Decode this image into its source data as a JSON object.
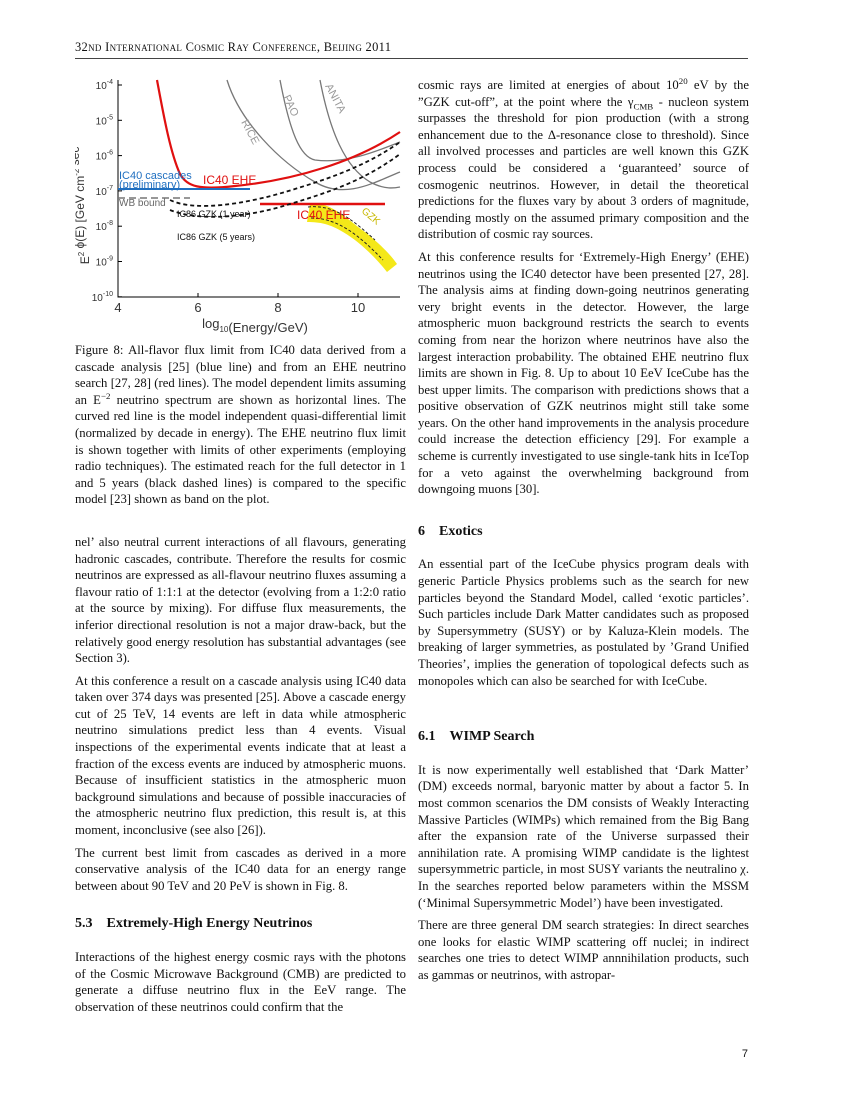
{
  "header": {
    "title": "32nd International Cosmic Ray Conference, Beijing 2011",
    "page": "7"
  },
  "figure": {
    "yticks": [
      {
        "base": "10",
        "sup": "-4"
      },
      {
        "base": "10",
        "sup": "-5"
      },
      {
        "base": "10",
        "sup": "-6"
      },
      {
        "base": "10",
        "sup": "-7"
      },
      {
        "base": "10",
        "sup": "-8"
      },
      {
        "base": "10",
        "sup": "-9"
      },
      {
        "base": "10",
        "sup": "-10"
      }
    ],
    "xticks": [
      4,
      6,
      8,
      10
    ],
    "ylabel": [
      {
        "base": "E",
        "sup": "2"
      },
      {
        "base": " ϕ(E) [GeV cm",
        "sup": "-2"
      },
      {
        "base": " sec",
        "sup": "-1"
      },
      {
        "base": " sr",
        "sup": "-1"
      },
      "]"
    ],
    "xlabel": [
      {
        "base": "log",
        "sub": "10"
      },
      "(Energy/GeV)"
    ],
    "annotations": {
      "rice": "RICE",
      "pao": "PAO",
      "anita": "ANITA",
      "gzk": "GZK",
      "ic40_cascades": "IC40 cascades",
      "preliminary": "(preliminary)",
      "ic40_ehe_curve": "IC40 EHE",
      "ic40_ehe_line": "IC40 EHE",
      "wb_bound": "WB bound",
      "ic86_1": "IC86 GZK (1 year)",
      "ic86_5": "IC86 GZK (5 years)"
    },
    "caption": [
      "Figure 8: All-flavor flux limit from IC40 data derived from a cascade analysis [25] (blue line) and from an EHE neutrino search [27, 28] (red lines). The model dependent limits assuming an ",
      {
        "base": "E",
        "sup": "−2"
      },
      " neutrino spectrum are shown as horizontal lines. The curved red line is the model independent quasi-differential limit (normalized by decade in energy). The EHE neutrino flux limit is shown together with limits of other experiments (employing radio techniques). The estimated reach for the full detector in 1 and 5 years (black dashed lines) is compared to the specific model [23] shown as band on the plot."
    ]
  },
  "left": {
    "p1": [
      "nel’ also neutral current interactions of all flavours, generating hadronic cascades, contribute. Therefore the results for cosmic neutrinos are expressed as all-flavour neutrino fluxes assuming a flavour ratio of 1:1:1 at the detector (evolving from a 1:2:0 ratio at the source by mixing). For diffuse flux measurements, the inferior directional resolution is not a major draw-back, but the relatively good energy resolution has substantial advantages (see Section 3)."
    ],
    "p2": [
      "At this conference a result on a cascade analysis using IC40 data taken over 374 days was presented [25]. Above a cascade energy cut of 25 TeV, 14 events are left in data while atmospheric neutrino simulations predict less than 4 events. Visual inspections of the experimental events indicate that at least a fraction of the excess events are induced by atmospheric muons. Because of insufficient statistics in the atmospheric muon background simulations and because of possible inaccuracies of the atmospheric neutrino flux prediction, this result is, at this moment, inconclusive (see also [26])."
    ],
    "p3": [
      "The current best limit from cascades as derived in a more conservative analysis of the IC40 data for an energy range between about 90 TeV and 20 PeV is shown in Fig. 8."
    ],
    "h53": {
      "num": "5.3",
      "title": "Extremely-High Energy Neutrinos"
    },
    "p4": [
      "Interactions of the highest energy cosmic rays with the photons of the Cosmic Microwave Background (CMB) are predicted to generate a diffuse neutrino flux in the EeV range. The observation of these neutrinos could confirm that the"
    ]
  },
  "right": {
    "p1": [
      "cosmic rays are limited at energies of about ",
      {
        "base": "10",
        "sup": "20"
      },
      " eV by the ”GZK cut-off”, at the point where the ",
      {
        "base": "γ",
        "sub": "CMB"
      },
      " - nucleon system surpasses the threshold for pion production (with a strong enhancement due to the Δ-resonance close to threshold). Since all involved processes and particles are well known this GZK process could be considered a ‘guaranteed’ source of cosmogenic neutrinos. However, in detail the theoretical predictions for the fluxes vary by about 3 orders of magnitude, depending mostly on the assumed primary composition and the distribution of cosmic ray sources."
    ],
    "p2": [
      "At this conference results for ‘Extremely-High Energy’ (EHE) neutrinos using the IC40 detector have been presented [27, 28]. The analysis aims at finding down-going neutrinos generating very bright events in the detector. However, the large atmospheric muon background restricts the search to events coming from near the horizon where neutrinos have also the largest interaction probability. The obtained EHE neutrino flux limits are shown in Fig. 8. Up to about 10 EeV IceCube has the best upper limits. The comparison with predictions shows that a positive observation of GZK neutrinos might still take some years. On the other hand improvements in the analysis procedure could increase the detection efficiency [29]. For example a scheme is currently investigated to use single-tank hits in IceTop for a veto against the overwhelming background from downgoing muons [30]."
    ],
    "h6": {
      "num": "6",
      "title": "Exotics"
    },
    "p3": [
      "An essential part of the IceCube physics program deals with generic Particle Physics problems such as the search for new particles beyond the Standard Model, called ‘exotic particles’. Such particles include Dark Matter candidates such as proposed by Supersymmetry (SUSY) or by Kaluza-Klein models. The breaking of larger symmetries, as postulated by ’Grand Unified Theories’, implies the generation of topological defects such as monopoles which can also be searched for with IceCube."
    ],
    "h61": {
      "num": "6.1",
      "title": "WIMP Search"
    },
    "p4": [
      "It is now experimentally well established that ‘Dark Matter’ (DM) exceeds normal, baryonic matter by about a factor 5. In most common scenarios the DM consists of Weakly Interacting Massive Particles (WIMPs) which remained from the Big Bang after the expansion rate of the Universe surpassed their annihilation rate. A promising WIMP candidate is the lightest supersymmetric particle, in most SUSY variants the neutralino χ. In the searches reported below parameters within the MSSM (‘Minimal Supersymmetric Model’) have been investigated."
    ],
    "p5": [
      "There are three general DM search strategies: In direct searches one looks for elastic WIMP scattering off nuclei; in indirect searches one tries to detect WIMP annnihilation products, such as gammas or neutrinos, with astropar-"
    ]
  }
}
